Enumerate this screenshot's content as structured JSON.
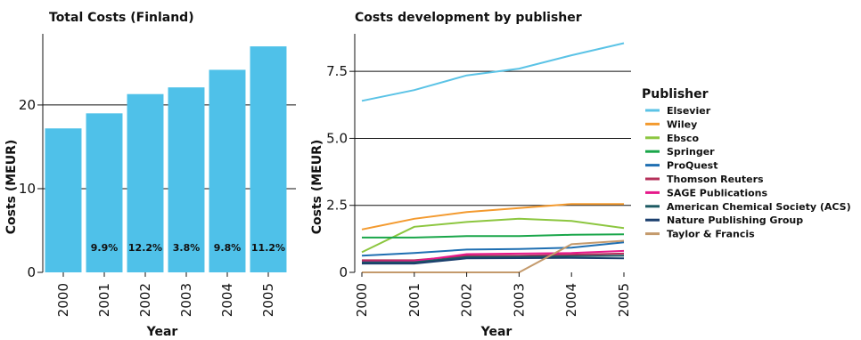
{
  "chart_data": [
    {
      "type": "bar",
      "title": "Total Costs (Finland)",
      "xlabel": "Year",
      "ylabel": "Costs (MEUR)",
      "categories": [
        "2000",
        "2001",
        "2002",
        "2003",
        "2004",
        "2005"
      ],
      "values": [
        17.2,
        19.0,
        21.3,
        22.1,
        24.2,
        27.0
      ],
      "data_labels": [
        "",
        "9.9%",
        "12.2%",
        "3.8%",
        "9.8%",
        "11.2%"
      ],
      "yticks": [
        0,
        10,
        20
      ],
      "ylim": [
        0,
        28.5
      ],
      "color": "#4fc1e9",
      "gridlines_at": [
        10,
        20
      ]
    },
    {
      "type": "line",
      "title": "Costs development by publisher",
      "xlabel": "Year",
      "ylabel": "Costs (MEUR)",
      "x": [
        "2000",
        "2001",
        "2002",
        "2003",
        "2004",
        "2005"
      ],
      "yticks": [
        "0",
        "2.5",
        "5.0",
        "7.5"
      ],
      "ylim": [
        0,
        8.9
      ],
      "gridlines_at": [
        2.5,
        5.0,
        7.5
      ],
      "legend_title": "Publisher",
      "legend_position": "right",
      "series": [
        {
          "name": "Elsevier",
          "color": "#5bc3e6",
          "values": [
            6.4,
            6.8,
            7.35,
            7.6,
            8.1,
            8.55
          ]
        },
        {
          "name": "Wiley",
          "color": "#f39a2f",
          "values": [
            1.6,
            2.0,
            2.25,
            2.4,
            2.55,
            2.55
          ]
        },
        {
          "name": "Ebsco",
          "color": "#8cc63f",
          "values": [
            0.75,
            1.7,
            1.88,
            2.0,
            1.92,
            1.65
          ]
        },
        {
          "name": "Springer",
          "color": "#1aa64a",
          "values": [
            1.3,
            1.3,
            1.35,
            1.35,
            1.4,
            1.42
          ]
        },
        {
          "name": "ProQuest",
          "color": "#1f6fb2",
          "values": [
            0.62,
            0.72,
            0.85,
            0.87,
            0.92,
            1.12
          ]
        },
        {
          "name": "Thomson Reuters",
          "color": "#b5305a",
          "values": [
            0.45,
            0.45,
            0.62,
            0.62,
            0.66,
            0.7
          ]
        },
        {
          "name": "SAGE Publications",
          "color": "#e6198b",
          "values": [
            0.4,
            0.42,
            0.68,
            0.7,
            0.72,
            0.8
          ]
        },
        {
          "name": "American Chemical Society (ACS)",
          "color": "#1d5a63",
          "values": [
            0.38,
            0.38,
            0.57,
            0.58,
            0.6,
            0.62
          ]
        },
        {
          "name": "Nature Publishing Group",
          "color": "#1b3f6e",
          "values": [
            0.33,
            0.33,
            0.52,
            0.53,
            0.54,
            0.52
          ]
        },
        {
          "name": "Taylor & Francis",
          "color": "#c49a6c",
          "values": [
            0.0,
            0.0,
            0.0,
            0.0,
            1.05,
            1.18
          ]
        }
      ]
    }
  ]
}
